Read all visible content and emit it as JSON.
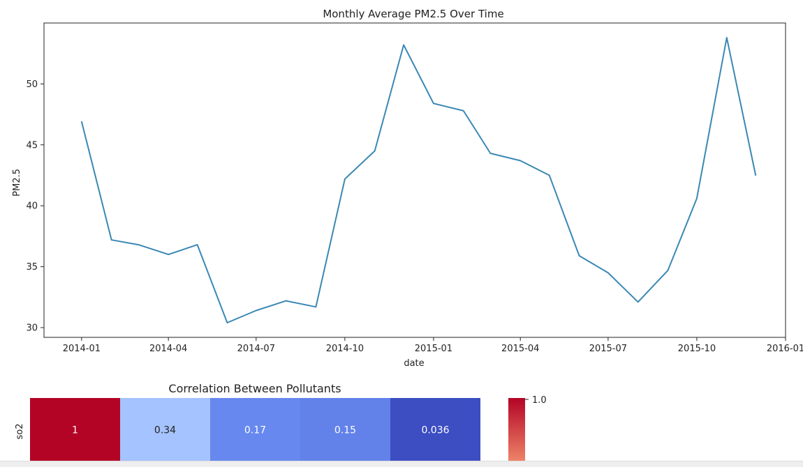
{
  "chart_data": [
    {
      "type": "line",
      "title": "Monthly Average PM2.5 Over Time",
      "xlabel": "date",
      "ylabel": "PM2.5",
      "x": [
        "2014-01",
        "2014-02",
        "2014-03",
        "2014-04",
        "2014-05",
        "2014-06",
        "2014-07",
        "2014-08",
        "2014-09",
        "2014-10",
        "2014-11",
        "2014-12",
        "2015-01",
        "2015-02",
        "2015-03",
        "2015-04",
        "2015-05",
        "2015-06",
        "2015-07",
        "2015-08",
        "2015-09",
        "2015-10",
        "2015-11",
        "2015-12"
      ],
      "series": [
        {
          "values": [
            46.9,
            37.2,
            36.8,
            36.0,
            36.8,
            30.4,
            31.4,
            32.2,
            31.7,
            42.2,
            44.5,
            53.2,
            48.4,
            47.8,
            44.3,
            43.7,
            42.5,
            35.9,
            34.5,
            32.1,
            34.7,
            40.6,
            53.8,
            42.5
          ],
          "color": "#3a88b4"
        }
      ],
      "xticks": [
        "2014-01",
        "2014-04",
        "2014-07",
        "2014-10",
        "2015-01",
        "2015-04",
        "2015-07",
        "2015-10",
        "2016-01"
      ],
      "yticks": [
        30,
        35,
        40,
        45,
        50
      ],
      "xlim": [
        "2013-11-23",
        "2016-01-01"
      ],
      "ylim": [
        29.2,
        55.0
      ],
      "grid": false,
      "legend": "none"
    },
    {
      "type": "heatmap",
      "title": "Correlation Between Pollutants",
      "rows": [
        "so2"
      ],
      "values": [
        [
          1,
          0.34,
          0.17,
          0.15,
          0.036
        ]
      ],
      "labels": [
        "1",
        "0.34",
        "0.17",
        "0.15",
        "0.036"
      ],
      "colormap": "coolwarm",
      "cell_colors": [
        "#b40426",
        "#a5c3fe",
        "#6788ee",
        "#6282ea",
        "#3c4ec2"
      ],
      "colorbar": {
        "tick": "1.0",
        "top_color": "#b40426",
        "bottom_color": "#ee8468"
      }
    }
  ]
}
